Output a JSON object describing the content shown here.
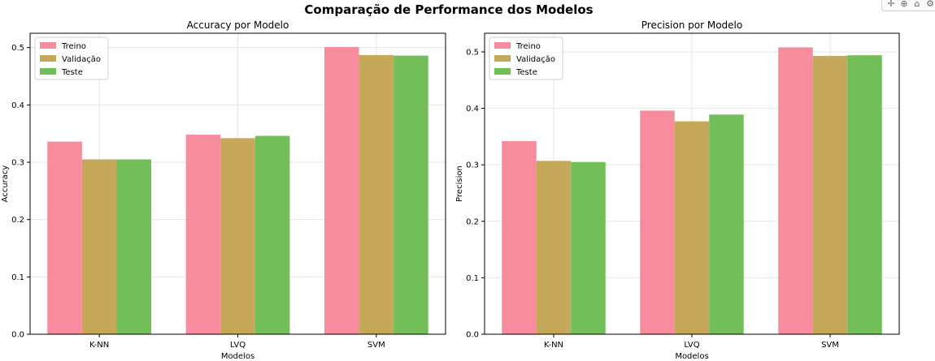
{
  "figure": {
    "suptitle": "Comparação de Performance dos Modelos"
  },
  "colors": {
    "Treino": "#f68c9e",
    "Validação": "#c6a85a",
    "Teste": "#72bf59"
  },
  "toolbar": {
    "icons": [
      "hand-icon",
      "zoom-icon",
      "home-icon",
      "settings-icon"
    ]
  },
  "chart_data": [
    {
      "type": "bar",
      "title": "Accuracy por Modelo",
      "xlabel": "Modelos",
      "ylabel": "Accuracy",
      "categories": [
        "K-NN",
        "LVQ",
        "SVM"
      ],
      "ylim": [
        0,
        0.525
      ],
      "yticks": [
        0.0,
        0.1,
        0.2,
        0.3,
        0.4,
        0.5
      ],
      "ytick_labels": [
        "0.0",
        "0.1",
        "0.2",
        "0.3",
        "0.4",
        "0.5"
      ],
      "grid": true,
      "legend": "top-left",
      "series": [
        {
          "name": "Treino",
          "values": [
            0.336,
            0.348,
            0.501
          ]
        },
        {
          "name": "Validação",
          "values": [
            0.305,
            0.342,
            0.487
          ]
        },
        {
          "name": "Teste",
          "values": [
            0.305,
            0.346,
            0.486
          ]
        }
      ]
    },
    {
      "type": "bar",
      "title": "Precision por Modelo",
      "xlabel": "Modelos",
      "ylabel": "Precision",
      "categories": [
        "K-NN",
        "LVQ",
        "SVM"
      ],
      "ylim": [
        0,
        0.533
      ],
      "yticks": [
        0.0,
        0.1,
        0.2,
        0.3,
        0.4,
        0.5
      ],
      "ytick_labels": [
        "0.0",
        "0.1",
        "0.2",
        "0.3",
        "0.4",
        "0.5"
      ],
      "grid": true,
      "legend": "top-left",
      "series": [
        {
          "name": "Treino",
          "values": [
            0.342,
            0.396,
            0.508
          ]
        },
        {
          "name": "Validação",
          "values": [
            0.307,
            0.377,
            0.493
          ]
        },
        {
          "name": "Teste",
          "values": [
            0.305,
            0.389,
            0.494
          ]
        }
      ]
    }
  ]
}
